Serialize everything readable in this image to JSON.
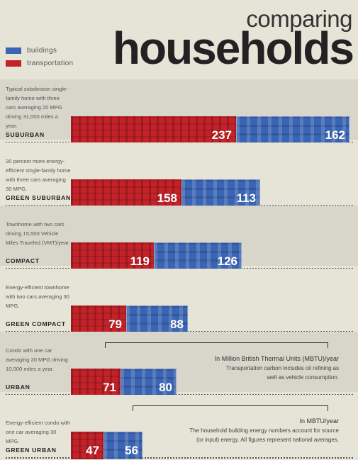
{
  "title": {
    "line1": "comparing",
    "line2": "households"
  },
  "legend": [
    {
      "label": "buildings",
      "color": "#3a64b4"
    },
    {
      "label": "transportation",
      "color": "#c42229"
    }
  ],
  "chart_data": {
    "type": "bar",
    "orientation": "horizontal",
    "stacked": true,
    "title": "comparing households",
    "categories": [
      "SUBURBAN",
      "GREEN SUBURBAN",
      "COMPACT",
      "GREEN COMPACT",
      "URBAN",
      "GREEN URBAN"
    ],
    "descriptions": [
      "Typical subdivision single-family home with three cars averaging 20 MPG driving 31,000 miles a year.",
      "30 percent more energy-efficient single-family home with three cars averaging 30 MPG.",
      "Townhome with two cars driving 15,500 Vehicle Miles Traveled (VMT)/year.",
      "Energy-efficient townhome with two cars averaging 30 MPG.",
      "Condo with one car averaging 20 MPG driving 10,000 miles a year.",
      "Energy-efficient condo with one car averaging 30 MPG."
    ],
    "series": [
      {
        "name": "transportation",
        "values": [
          237,
          158,
          119,
          79,
          71,
          47
        ]
      },
      {
        "name": "buildings",
        "values": [
          162,
          113,
          126,
          88,
          80,
          56
        ]
      }
    ],
    "legend_position": "top-left"
  },
  "notes": [
    {
      "head": "In Million British Thermal Units (MBTU)/year",
      "lines": [
        "Transportation carbon includes oil refining as",
        "well as vehicle consumption."
      ]
    },
    {
      "head": "In MBTU/year",
      "lines": [
        "The household building energy numbers account for source",
        "(or input) energy. All figures represent national averages."
      ]
    }
  ]
}
